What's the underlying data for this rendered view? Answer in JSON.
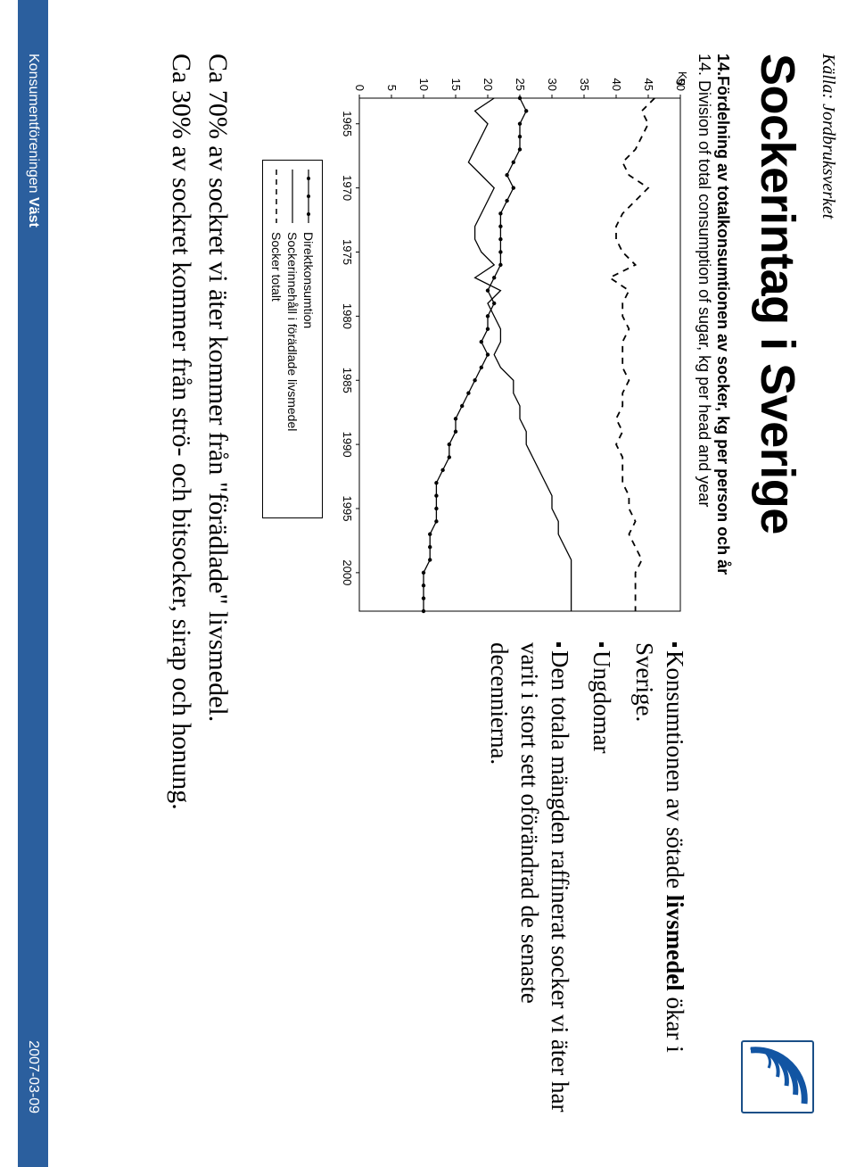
{
  "source_label": "Källa: Jordbruksverket",
  "title": "Sockerintag i Sverige",
  "chart_caption_sv": "14.Fördelning av totalkonsumtionen av socker, kg per person och år",
  "chart_caption_en": "14. Division of total consumption of sugar, kg per head and year",
  "chart": {
    "type": "line",
    "y_label": "Kg",
    "xlim": [
      1963,
      2003
    ],
    "ylim": [
      0,
      50
    ],
    "x_ticks": [
      1965,
      1970,
      1975,
      1980,
      1985,
      1990,
      1995,
      2000
    ],
    "y_ticks": [
      0,
      5,
      10,
      15,
      20,
      25,
      30,
      35,
      40,
      45,
      50
    ],
    "bg_color": "#ffffff",
    "axis_color": "#000000",
    "line_color": "#000000",
    "tick_font_size": 13,
    "label_font_family": "Arial",
    "series": [
      {
        "name": "Direktkonsumtion",
        "marker": "dot",
        "dash": "none",
        "x": [
          1963,
          1964,
          1965,
          1966,
          1967,
          1968,
          1969,
          1970,
          1971,
          1972,
          1973,
          1974,
          1975,
          1976,
          1977,
          1978,
          1979,
          1980,
          1981,
          1982,
          1983,
          1984,
          1985,
          1986,
          1987,
          1988,
          1989,
          1990,
          1991,
          1992,
          1993,
          1994,
          1995,
          1996,
          1997,
          1998,
          1999,
          2000,
          2001,
          2002,
          2003
        ],
        "y": [
          25,
          26,
          25,
          25,
          25,
          24,
          23,
          24,
          23,
          22,
          22,
          22,
          22,
          22,
          21,
          20,
          21,
          20,
          20,
          19,
          20,
          19,
          18,
          17,
          16,
          15,
          15,
          14,
          14,
          13,
          12,
          12,
          12,
          12,
          11,
          11,
          11,
          10,
          10,
          10,
          10
        ]
      },
      {
        "name": "Sockerinnehåll i förädlade livsmedel",
        "marker": "none",
        "dash": "none",
        "x": [
          1963,
          1964,
          1965,
          1966,
          1967,
          1968,
          1969,
          1970,
          1971,
          1972,
          1973,
          1974,
          1975,
          1976,
          1977,
          1978,
          1979,
          1980,
          1981,
          1982,
          1983,
          1984,
          1985,
          1986,
          1987,
          1988,
          1989,
          1990,
          1991,
          1992,
          1993,
          1994,
          1995,
          1996,
          1997,
          1998,
          1999,
          2000,
          2001,
          2002,
          2003
        ],
        "y": [
          21,
          18,
          20,
          19,
          18,
          17,
          19,
          21,
          20,
          19,
          18,
          18,
          19,
          21,
          18,
          22,
          20,
          21,
          22,
          22,
          21,
          22,
          24,
          24,
          25,
          25,
          26,
          26,
          27,
          28,
          29,
          30,
          30,
          31,
          31,
          32,
          33,
          33,
          33,
          33,
          33
        ]
      },
      {
        "name": "Socker totalt",
        "marker": "none",
        "dash": "dash",
        "x": [
          1963,
          1964,
          1965,
          1966,
          1967,
          1968,
          1969,
          1970,
          1971,
          1972,
          1973,
          1974,
          1975,
          1976,
          1977,
          1978,
          1979,
          1980,
          1981,
          1982,
          1983,
          1984,
          1985,
          1986,
          1987,
          1988,
          1989,
          1990,
          1991,
          1992,
          1993,
          1994,
          1995,
          1996,
          1997,
          1998,
          1999,
          2000,
          2001,
          2002,
          2003
        ],
        "y": [
          46,
          44,
          45,
          44,
          43,
          41,
          42,
          45,
          43,
          41,
          40,
          40,
          41,
          43,
          39,
          42,
          41,
          41,
          42,
          41,
          41,
          41,
          42,
          41,
          41,
          40,
          41,
          40,
          41,
          41,
          41,
          42,
          42,
          43,
          42,
          43,
          44,
          43,
          43,
          43,
          43
        ]
      }
    ],
    "legend_labels": [
      "Direktkonsumtion",
      "Sockerinnehåll i förädlade livsmedel",
      "Socker totalt"
    ]
  },
  "bullets": [
    {
      "prefix": "Konsumtionen av sötade ",
      "bold": "livsmedel",
      "suffix": " ökar i Sverige."
    },
    {
      "prefix": "Ungdomar",
      "bold": "",
      "suffix": ""
    },
    {
      "prefix": "Den totala mängden raffinerat socker vi äter har varit i stort sett oförändrad de senaste decennierna.",
      "bold": "",
      "suffix": ""
    }
  ],
  "body_lines": [
    "Ca 70% av sockret vi äter kommer från \"förädlade\" livsmedel.",
    "Ca 30% av sockret kommer från strö- och bitsocker, sirap och honung."
  ],
  "footer": {
    "org_prefix": "Konsumentföreningen ",
    "org_bold": "Väst",
    "date": "2007-03-09",
    "bg_color": "#2b5f9e",
    "text_color": "#ffffff"
  },
  "logo": {
    "border_color": "#1a4f87",
    "arc_color": "#1255a3"
  }
}
